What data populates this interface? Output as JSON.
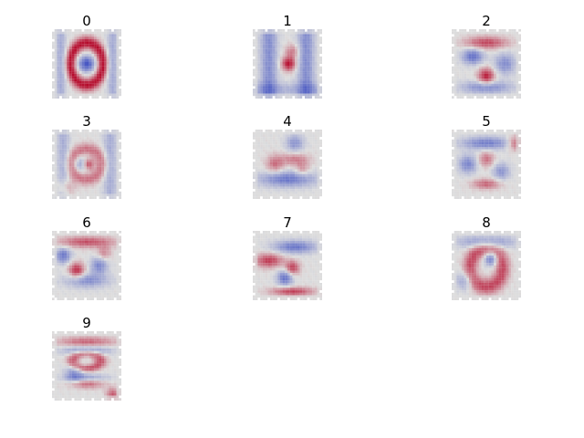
{
  "figure": {
    "panels": [
      {
        "title": "0",
        "pattern": "zero"
      },
      {
        "title": "1",
        "pattern": "one"
      },
      {
        "title": "2",
        "pattern": "two"
      },
      {
        "title": "3",
        "pattern": "three"
      },
      {
        "title": "4",
        "pattern": "four"
      },
      {
        "title": "5",
        "pattern": "five"
      },
      {
        "title": "6",
        "pattern": "six"
      },
      {
        "title": "7",
        "pattern": "seven"
      },
      {
        "title": "8",
        "pattern": "eight"
      },
      {
        "title": "9",
        "pattern": "nine"
      }
    ],
    "colormap": "coolwarm",
    "colors": {
      "cool": "#3b4cc0",
      "neutral": "#dddddd",
      "warm": "#b40426",
      "background": "#ffffff"
    }
  }
}
